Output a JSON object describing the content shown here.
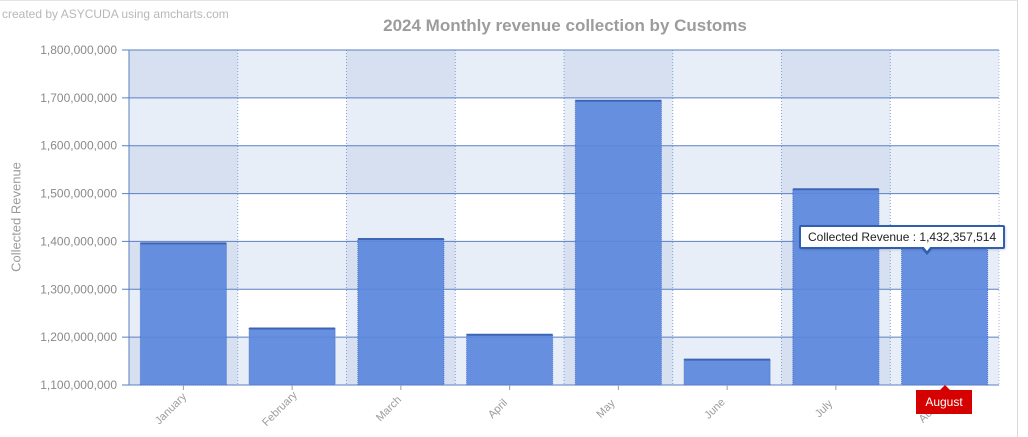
{
  "credit": "created by ASYCUDA using amcharts.com",
  "chart_data": {
    "type": "bar",
    "title": "2024 Monthly revenue collection by Customs",
    "xlabel": "",
    "ylabel": "Collected Revenue",
    "categories": [
      "January",
      "February",
      "March",
      "April",
      "May",
      "June",
      "July",
      "August"
    ],
    "series": [
      {
        "name": "Collected Revenue",
        "values": [
          1396000000,
          1218000000,
          1405000000,
          1205000000,
          1694000000,
          1153000000,
          1509000000,
          1432357514
        ]
      }
    ],
    "ylim": [
      1100000000,
      1800000000
    ],
    "yticks": [
      "1,100,000,000",
      "1,200,000,000",
      "1,300,000,000",
      "1,400,000,000",
      "1,500,000,000",
      "1,600,000,000",
      "1,700,000,000",
      "1,800,000,000"
    ],
    "grid": true,
    "bar_color": "#5b87dd",
    "alt_band_color": "#e8eef8",
    "alt_band_dark": "#d6e0f1",
    "tooltip": {
      "label": "Collected Revenue : 1,432,357,514"
    },
    "cursor_category": "August"
  }
}
